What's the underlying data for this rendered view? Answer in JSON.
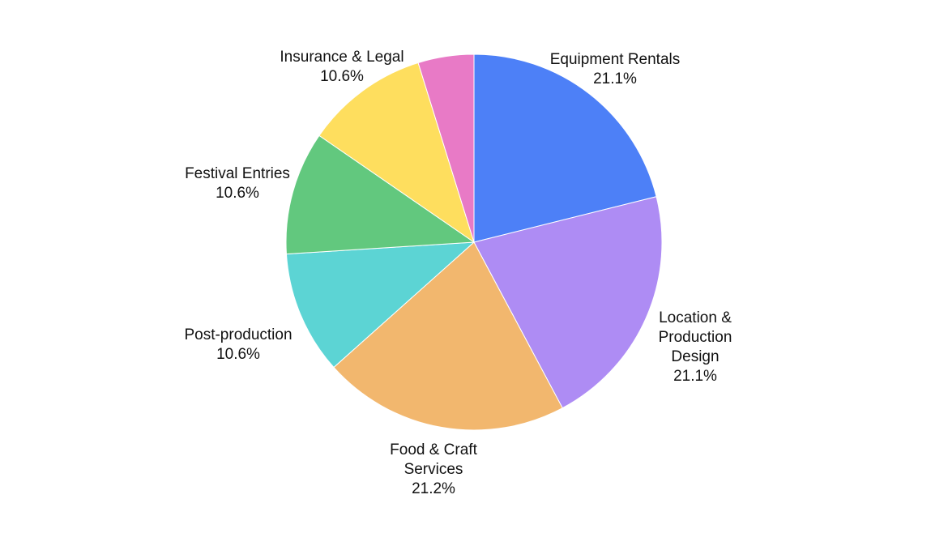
{
  "chart_data": {
    "type": "pie",
    "title": "",
    "slices": [
      {
        "label_lines": [
          "Equipment Rentals"
        ],
        "value": 21.1,
        "value_label": "21.1%",
        "color": "#4D80F7"
      },
      {
        "label_lines": [
          "Location &",
          "Production",
          "Design"
        ],
        "value": 21.1,
        "value_label": "21.1%",
        "color": "#AE8CF4"
      },
      {
        "label_lines": [
          "Food & Craft",
          "Services"
        ],
        "value": 21.2,
        "value_label": "21.2%",
        "color": "#F2B76E"
      },
      {
        "label_lines": [
          "Post-production"
        ],
        "value": 10.6,
        "value_label": "10.6%",
        "color": "#5CD4D4"
      },
      {
        "label_lines": [
          "Festival Entries"
        ],
        "value": 10.6,
        "value_label": "10.6%",
        "color": "#62C87E"
      },
      {
        "label_lines": [
          "Insurance & Legal"
        ],
        "value": 10.6,
        "value_label": "10.6%",
        "color": "#FEDE5E"
      },
      {
        "label_lines": [],
        "value": 4.8,
        "value_label": "",
        "color": "#E87AC6"
      }
    ],
    "start_angle": "12 o'clock",
    "direction": "clockwise",
    "legend": "none"
  }
}
